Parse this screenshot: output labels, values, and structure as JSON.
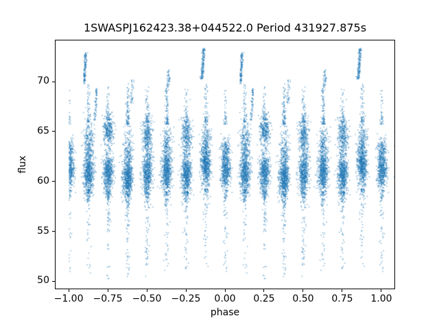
{
  "figure": {
    "background": "#ffffff",
    "axis_color": "#000000",
    "text_color": "#000000"
  },
  "chart_data": {
    "type": "scatter",
    "title": "1SWASPJ162423.38+044522.0 Period 431927.875s",
    "xlabel": "phase",
    "ylabel": "flux",
    "xlim": [
      -1.088,
      1.088
    ],
    "ylim": [
      49.2,
      74.2
    ],
    "grid": false,
    "legend": null,
    "point_color": "#1f77b4",
    "point_alpha": 0.55,
    "point_size": 1.5,
    "seed": 42,
    "xticks": [
      {
        "value": -1.0,
        "label": "−1.00"
      },
      {
        "value": -0.75,
        "label": "−0.75"
      },
      {
        "value": -0.5,
        "label": "−0.50"
      },
      {
        "value": -0.25,
        "label": "−0.25"
      },
      {
        "value": 0.0,
        "label": "0.00"
      },
      {
        "value": 0.25,
        "label": "0.25"
      },
      {
        "value": 0.5,
        "label": "0.50"
      },
      {
        "value": 0.75,
        "label": "0.75"
      },
      {
        "value": 1.0,
        "label": "1.00"
      }
    ],
    "yticks": [
      {
        "value": 50,
        "label": "50"
      },
      {
        "value": 55,
        "label": "55"
      },
      {
        "value": 60,
        "label": "60"
      },
      {
        "value": 65,
        "label": "65"
      },
      {
        "value": 70,
        "label": "70"
      }
    ],
    "clusters": [
      {
        "phase": 0.0,
        "phase_sigma": 0.016,
        "components": [
          {
            "mu": 61.3,
            "sigma": 1.0,
            "n": 550
          },
          {
            "mu": 63.3,
            "sigma": 0.7,
            "n": 120
          }
        ],
        "up_tail": {
          "min": 65.8,
          "max": 69.5,
          "n": 40,
          "bias": 2.2
        },
        "down_tail": {
          "min": 51.0,
          "max": 59.2,
          "n": 60,
          "bias": 2.8
        }
      },
      {
        "phase": 0.125,
        "phase_sigma": 0.016,
        "components": [
          {
            "mu": 60.8,
            "sigma": 1.1,
            "n": 600
          },
          {
            "mu": 64.0,
            "sigma": 1.1,
            "n": 250
          }
        ],
        "up_tail": {
          "min": 66.0,
          "max": 69.8,
          "n": 55,
          "bias": 2.2
        },
        "down_tail": {
          "min": 50.5,
          "max": 59.2,
          "n": 80,
          "bias": 2.8
        }
      },
      {
        "phase": 0.25,
        "phase_sigma": 0.016,
        "components": [
          {
            "mu": 60.9,
            "sigma": 1.0,
            "n": 600
          },
          {
            "mu": 65.2,
            "sigma": 0.8,
            "n": 320
          }
        ],
        "up_tail": {
          "min": 66.2,
          "max": 69.6,
          "n": 45,
          "bias": 2.2
        },
        "down_tail": {
          "min": 50.3,
          "max": 59.0,
          "n": 85,
          "bias": 2.8
        }
      },
      {
        "phase": 0.375,
        "phase_sigma": 0.016,
        "components": [
          {
            "mu": 60.4,
            "sigma": 1.0,
            "n": 650
          },
          {
            "mu": 63.3,
            "sigma": 1.2,
            "n": 180
          }
        ],
        "up_tail": {
          "min": 65.8,
          "max": 69.9,
          "n": 90,
          "bias": 2.0
        },
        "down_tail": {
          "min": 50.3,
          "max": 58.8,
          "n": 95,
          "bias": 2.6
        }
      },
      {
        "phase": 0.5,
        "phase_sigma": 0.016,
        "components": [
          {
            "mu": 60.9,
            "sigma": 1.1,
            "n": 600
          },
          {
            "mu": 64.7,
            "sigma": 1.0,
            "n": 330
          }
        ],
        "up_tail": {
          "min": 66.0,
          "max": 69.8,
          "n": 50,
          "bias": 2.2
        },
        "down_tail": {
          "min": 50.4,
          "max": 59.0,
          "n": 85,
          "bias": 2.7
        }
      },
      {
        "phase": 0.625,
        "phase_sigma": 0.016,
        "components": [
          {
            "mu": 61.0,
            "sigma": 1.0,
            "n": 620
          },
          {
            "mu": 63.6,
            "sigma": 1.0,
            "n": 200
          }
        ],
        "up_tail": {
          "min": 65.8,
          "max": 69.5,
          "n": 90,
          "bias": 2.0
        },
        "down_tail": {
          "min": 51.0,
          "max": 59.0,
          "n": 70,
          "bias": 2.8
        }
      },
      {
        "phase": 0.75,
        "phase_sigma": 0.016,
        "components": [
          {
            "mu": 60.7,
            "sigma": 1.1,
            "n": 650
          },
          {
            "mu": 64.7,
            "sigma": 0.9,
            "n": 300
          }
        ],
        "up_tail": {
          "min": 66.0,
          "max": 69.4,
          "n": 45,
          "bias": 2.2
        },
        "down_tail": {
          "min": 50.5,
          "max": 59.0,
          "n": 80,
          "bias": 2.8
        }
      },
      {
        "phase": 0.875,
        "phase_sigma": 0.016,
        "components": [
          {
            "mu": 61.6,
            "sigma": 1.0,
            "n": 600
          },
          {
            "mu": 63.9,
            "sigma": 1.0,
            "n": 220
          }
        ],
        "up_tail": {
          "min": 66.0,
          "max": 69.8,
          "n": 55,
          "bias": 2.2
        },
        "down_tail": {
          "min": 51.5,
          "max": 59.3,
          "n": 70,
          "bias": 2.8
        }
      }
    ],
    "streaks": [
      {
        "phase": 0.095,
        "fmin": 69.8,
        "fmax": 73.0,
        "n": 130,
        "drift": 0.012,
        "phase_sigma": 0.004
      },
      {
        "phase": 0.165,
        "fmin": 66.2,
        "fmax": 69.4,
        "n": 70,
        "drift": 0.01,
        "phase_sigma": 0.004
      },
      {
        "phase": 0.4,
        "fmin": 67.8,
        "fmax": 70.3,
        "n": 35,
        "drift": 0.008,
        "phase_sigma": 0.005
      },
      {
        "phase": 0.63,
        "fmin": 69.2,
        "fmax": 71.3,
        "n": 45,
        "drift": 0.008,
        "phase_sigma": 0.005
      },
      {
        "phase": 0.85,
        "fmin": 70.3,
        "fmax": 73.4,
        "n": 150,
        "drift": 0.012,
        "phase_sigma": 0.005
      }
    ]
  }
}
